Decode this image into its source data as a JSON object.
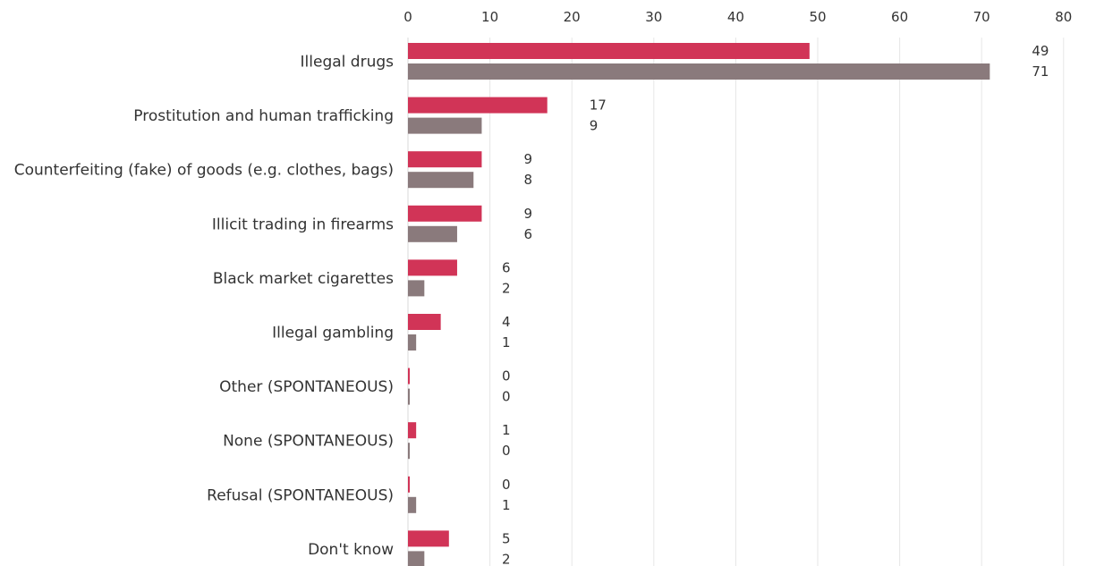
{
  "chart_data": {
    "type": "bar",
    "orientation": "horizontal",
    "categories": [
      "Illegal drugs",
      "Prostitution and human trafficking",
      "Counterfeiting (fake) of goods (e.g. clothes, bags)",
      "Illicit trading in firearms",
      "Black market cigarettes",
      "Illegal gambling",
      "Other (SPONTANEOUS)",
      "None (SPONTANEOUS)",
      "Refusal (SPONTANEOUS)",
      "Don't know"
    ],
    "series": [
      {
        "values": [
          49,
          17,
          9,
          9,
          6,
          4,
          0,
          1,
          0,
          5
        ],
        "color": "#d13457"
      },
      {
        "values": [
          71,
          9,
          8,
          6,
          2,
          1,
          0,
          0,
          1,
          2
        ],
        "color": "#8a7a7c"
      }
    ],
    "xlim": [
      0,
      80
    ],
    "xticks": [
      0,
      10,
      20,
      30,
      40,
      50,
      60,
      70,
      80
    ],
    "axis_position": "top",
    "grid": true,
    "title": "",
    "xlabel": "",
    "ylabel": ""
  }
}
